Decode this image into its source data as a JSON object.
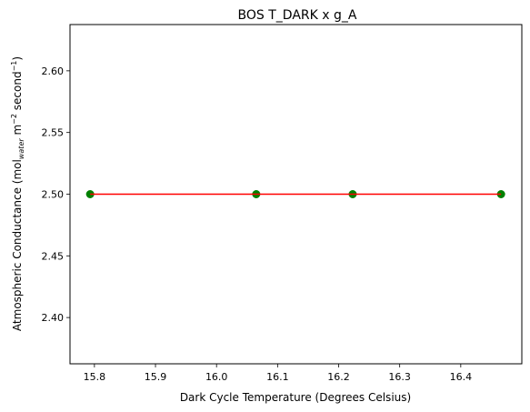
{
  "chart_data": {
    "type": "scatter",
    "title": "BOS T_DARK x g_A",
    "xlabel": "Dark Cycle Temperature (Degrees Celsius)",
    "ylabel": {
      "prefix": "Atmospheric Conductance (mol",
      "sub": "water",
      "mid1": " m",
      "sup1": "−2",
      "mid2": " second",
      "sup2": "−1",
      "suffix": ")"
    },
    "xlim": [
      15.76,
      16.5
    ],
    "ylim": [
      2.3625,
      2.6375
    ],
    "xticks": [
      15.8,
      15.9,
      16.0,
      16.1,
      16.2,
      16.3,
      16.4
    ],
    "xtick_labels": [
      "15.8",
      "15.9",
      "16.0",
      "16.1",
      "16.2",
      "16.3",
      "16.4"
    ],
    "yticks": [
      2.4,
      2.45,
      2.5,
      2.55,
      2.6
    ],
    "ytick_labels": [
      "2.40",
      "2.45",
      "2.50",
      "2.55",
      "2.60"
    ],
    "grid": false,
    "points": {
      "x": [
        15.793,
        16.065,
        16.223,
        16.466
      ],
      "y": [
        2.5,
        2.5,
        2.5,
        2.5
      ],
      "color": "#008000"
    },
    "fit_line": {
      "x": [
        15.793,
        16.466
      ],
      "y": [
        2.5,
        2.5
      ],
      "color": "#ff0000"
    }
  }
}
